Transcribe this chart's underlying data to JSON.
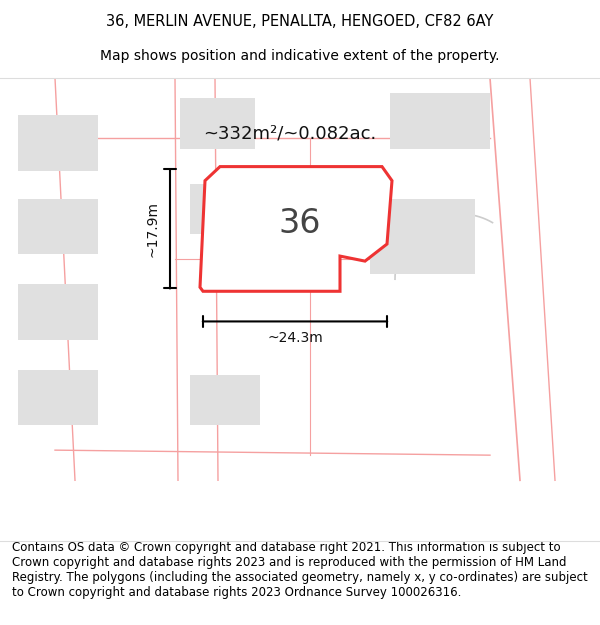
{
  "title_line1": "36, MERLIN AVENUE, PENALLTA, HENGOED, CF82 6AY",
  "title_line2": "Map shows position and indicative extent of the property.",
  "footer_text": "Contains OS data © Crown copyright and database right 2021. This information is subject to Crown copyright and database rights 2023 and is reproduced with the permission of HM Land Registry. The polygons (including the associated geometry, namely x, y co-ordinates) are subject to Crown copyright and database rights 2023 Ordnance Survey 100026316.",
  "bg_color": "#ffffff",
  "map_bg_color": "#ffffff",
  "building_color": "#e0e0e0",
  "boundary_color": "#ee3333",
  "neighbor_line_color": "#f5a0a0",
  "gray_line_color": "#cccccc",
  "dim_color": "#111111",
  "label_36": "36",
  "area_label": "~332m²/~0.082ac.",
  "width_label": "~24.3m",
  "height_label": "~17.9m",
  "title_fontsize": 10.5,
  "subtitle_fontsize": 10,
  "footer_fontsize": 8.5
}
